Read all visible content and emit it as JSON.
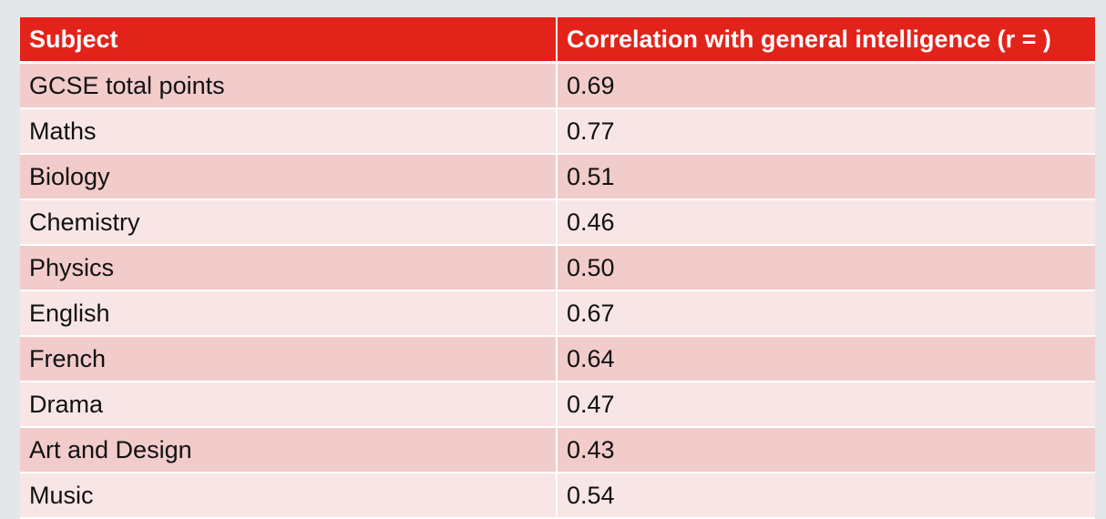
{
  "colors": {
    "header_bg": "#e2231a",
    "row_dark": "#f2cbcb",
    "row_light": "#f8e6e6",
    "page_bg": "#e3e7ea"
  },
  "table": {
    "headers": [
      "Subject",
      "Correlation with general intelligence (r = )"
    ],
    "rows": [
      [
        "GCSE total points",
        "0.69"
      ],
      [
        "Maths",
        "0.77"
      ],
      [
        "Biology",
        "0.51"
      ],
      [
        "Chemistry",
        "0.46"
      ],
      [
        "Physics",
        "0.50"
      ],
      [
        "English",
        "0.67"
      ],
      [
        "French",
        "0.64"
      ],
      [
        "Drama",
        "0.47"
      ],
      [
        "Art and Design",
        "0.43"
      ],
      [
        "Music",
        "0.54"
      ]
    ]
  }
}
